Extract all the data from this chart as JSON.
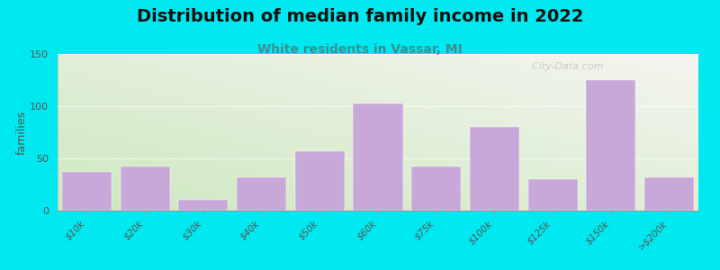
{
  "title": "Distribution of median family income in 2022",
  "subtitle": "White residents in Vassar, MI",
  "categories": [
    "$10k",
    "$20k",
    "$30k",
    "$40k",
    "$50k",
    "$60k",
    "$75k",
    "$100k",
    "$125k",
    "$150k",
    ">$200k"
  ],
  "values": [
    37,
    42,
    10,
    32,
    57,
    103,
    42,
    80,
    30,
    125,
    32
  ],
  "bar_color": "#c8a8d8",
  "bar_edge_color": "#c8a8d8",
  "background_color": "#00e8f0",
  "plot_bg_top_left": "#cde8c0",
  "plot_bg_bottom_right": "#f5f5f0",
  "ylabel": "families",
  "ylim": [
    0,
    150
  ],
  "yticks": [
    0,
    50,
    100,
    150
  ],
  "title_fontsize": 14,
  "subtitle_fontsize": 10,
  "subtitle_color": "#3a9090",
  "watermark": "  City-Data.com",
  "title_color": "#111111"
}
